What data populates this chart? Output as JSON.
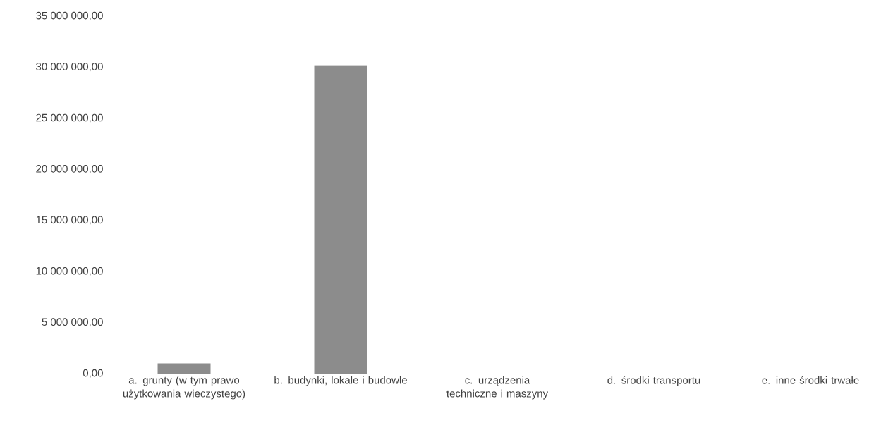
{
  "chart_data": {
    "type": "bar",
    "categories": [
      "a. grunty (w tym prawo użytkowania wieczystego)",
      "b. budynki, lokale i budowle",
      "c. urządzenia techniczne i maszyny",
      "d. środki transportu",
      "e. inne środki trwałe"
    ],
    "values": [
      1000000,
      30200000,
      0,
      0,
      0
    ],
    "color": "#8c8c8c",
    "ylim": [
      0,
      35000000
    ],
    "yticks": [
      {
        "value": 0,
        "label": "0,00"
      },
      {
        "value": 5000000,
        "label": "5 000 000,00"
      },
      {
        "value": 10000000,
        "label": "10 000 000,00"
      },
      {
        "value": 15000000,
        "label": "15 000 000,00"
      },
      {
        "value": 20000000,
        "label": "20 000 000,00"
      },
      {
        "value": 25000000,
        "label": "25 000 000,00"
      },
      {
        "value": 30000000,
        "label": "30 000 000,00"
      },
      {
        "value": 35000000,
        "label": "35 000 000,00"
      }
    ],
    "grid": false
  }
}
